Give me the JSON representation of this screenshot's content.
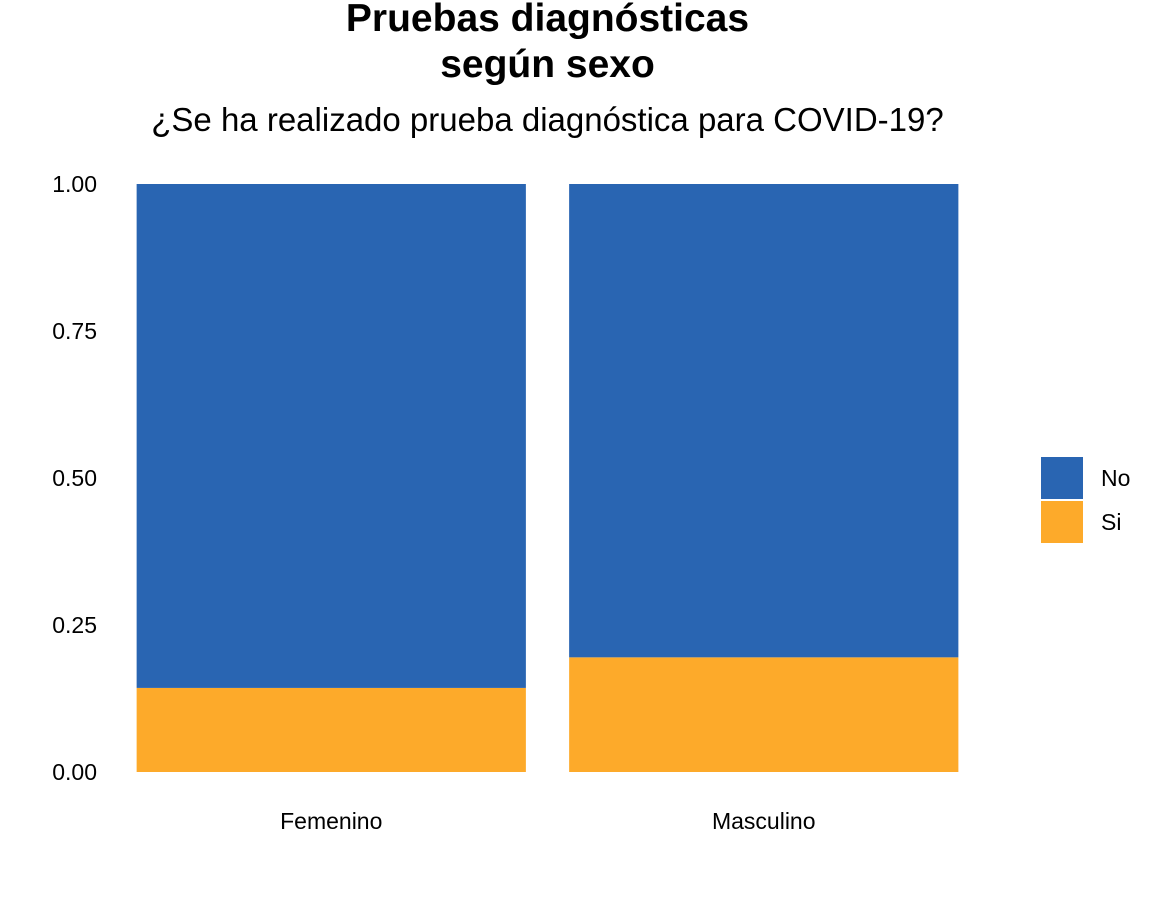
{
  "chart_data": {
    "type": "bar",
    "stacked": true,
    "title_lines": [
      "Pruebas diagnósticas",
      "según sexo"
    ],
    "subtitle": "¿Se ha realizado prueba diagnóstica para COVID-19?",
    "xlabel": "",
    "ylabel": "",
    "categories": [
      "Femenino",
      "Masculino"
    ],
    "series": [
      {
        "name": "No",
        "color": "#2965B2",
        "values": [
          0.857,
          0.805
        ]
      },
      {
        "name": "Si",
        "color": "#FDAA2A",
        "values": [
          0.143,
          0.195
        ]
      }
    ],
    "ylim": [
      0,
      1
    ],
    "yticks": [
      "0.00",
      "0.25",
      "0.50",
      "0.75",
      "1.00"
    ],
    "grid": false,
    "legend_position": "right"
  }
}
